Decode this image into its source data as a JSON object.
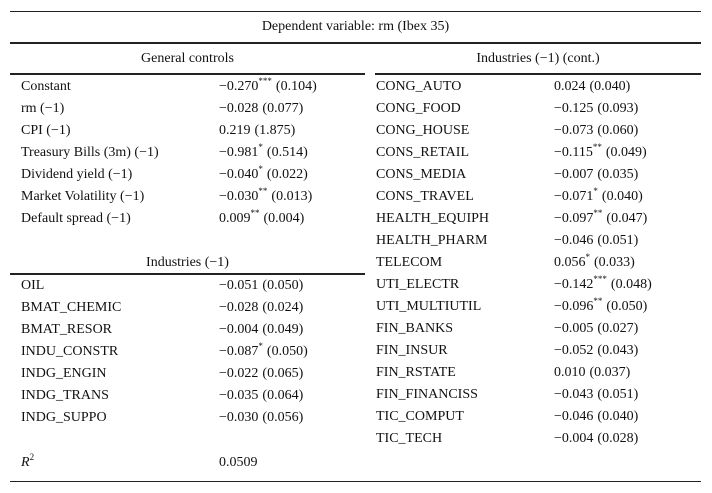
{
  "header": {
    "title": "Dependent variable: rm (Ibex 35)"
  },
  "general": {
    "title": "General controls",
    "rows": [
      {
        "label": "Constant",
        "coef": "−0.270",
        "stars": "***",
        "se": "(0.104)"
      },
      {
        "label": "rm (−1)",
        "coef": "−0.028",
        "se": "(0.077)"
      },
      {
        "label": "CPI (−1)",
        "coef": "0.219",
        "se": "(1.875)"
      },
      {
        "label": "Treasury Bills (3m) (−1)",
        "coef": "−0.981",
        "stars": "*",
        "se": "(0.514)"
      },
      {
        "label": "Dividend yield (−1)",
        "coef": "−0.040",
        "stars": "*",
        "se": "(0.022)"
      },
      {
        "label": "Market Volatility (−1)",
        "coef": "−0.030",
        "stars": "**",
        "se": "(0.013)"
      },
      {
        "label": "Default spread (−1)",
        "coef": "0.009",
        "stars": "**",
        "se": "(0.004)"
      }
    ]
  },
  "industries": {
    "title": "Industries (−1)",
    "rows": [
      {
        "label": "OIL",
        "coef": "−0.051",
        "se": "(0.050)"
      },
      {
        "label": "BMAT_CHEMIC",
        "coef": "−0.028",
        "se": "(0.024)"
      },
      {
        "label": "BMAT_RESOR",
        "coef": "−0.004",
        "se": "(0.049)"
      },
      {
        "label": "INDU_CONSTR",
        "coef": "−0.087",
        "stars": "*",
        "se": "(0.050)"
      },
      {
        "label": "INDG_ENGIN",
        "coef": "−0.022",
        "se": "(0.065)"
      },
      {
        "label": "INDG_TRANS",
        "coef": "−0.035",
        "se": "(0.064)"
      },
      {
        "label": "INDG_SUPPO",
        "coef": "−0.030",
        "se": "(0.056)"
      }
    ]
  },
  "industries_cont": {
    "title": "Industries (−1) (cont.)",
    "rows": [
      {
        "label": "CONG_AUTO",
        "coef": "0.024",
        "se": "(0.040)"
      },
      {
        "label": "CONG_FOOD",
        "coef": "−0.125",
        "se": "(0.093)"
      },
      {
        "label": "CONG_HOUSE",
        "coef": "−0.073",
        "se": "(0.060)"
      },
      {
        "label": "CONS_RETAIL",
        "coef": "−0.115",
        "stars": "**",
        "se": "(0.049)"
      },
      {
        "label": "CONS_MEDIA",
        "coef": "−0.007",
        "se": "(0.035)"
      },
      {
        "label": "CONS_TRAVEL",
        "coef": "−0.071",
        "stars": "*",
        "se": "(0.040)"
      },
      {
        "label": "HEALTH_EQUIPH",
        "coef": "−0.097",
        "stars": "**",
        "se": "(0.047)"
      },
      {
        "label": "HEALTH_PHARM",
        "coef": "−0.046",
        "se": "(0.051)"
      },
      {
        "label": "TELECOM",
        "coef": "0.056",
        "stars": "*",
        "se": "(0.033)"
      },
      {
        "label": "UTI_ELECTR",
        "coef": "−0.142",
        "stars": "***",
        "se": "(0.048)"
      },
      {
        "label": "UTI_MULTIUTIL",
        "coef": "−0.096",
        "stars": "**",
        "se": "(0.050)"
      },
      {
        "label": "FIN_BANKS",
        "coef": "−0.005",
        "se": "(0.027)"
      },
      {
        "label": "FIN_INSUR",
        "coef": "−0.052",
        "se": "(0.043)"
      },
      {
        "label": "FIN_RSTATE",
        "coef": "0.010",
        "se": "(0.037)"
      },
      {
        "label": "FIN_FINANCISS",
        "coef": "−0.043",
        "se": "(0.051)"
      },
      {
        "label": "TIC_COMPUT",
        "coef": "−0.046",
        "se": "(0.040)"
      },
      {
        "label": "TIC_TECH",
        "coef": "−0.004",
        "se": "(0.028)"
      }
    ]
  },
  "r2": {
    "label": "R",
    "label_sup": "2",
    "value": "0.0509"
  }
}
